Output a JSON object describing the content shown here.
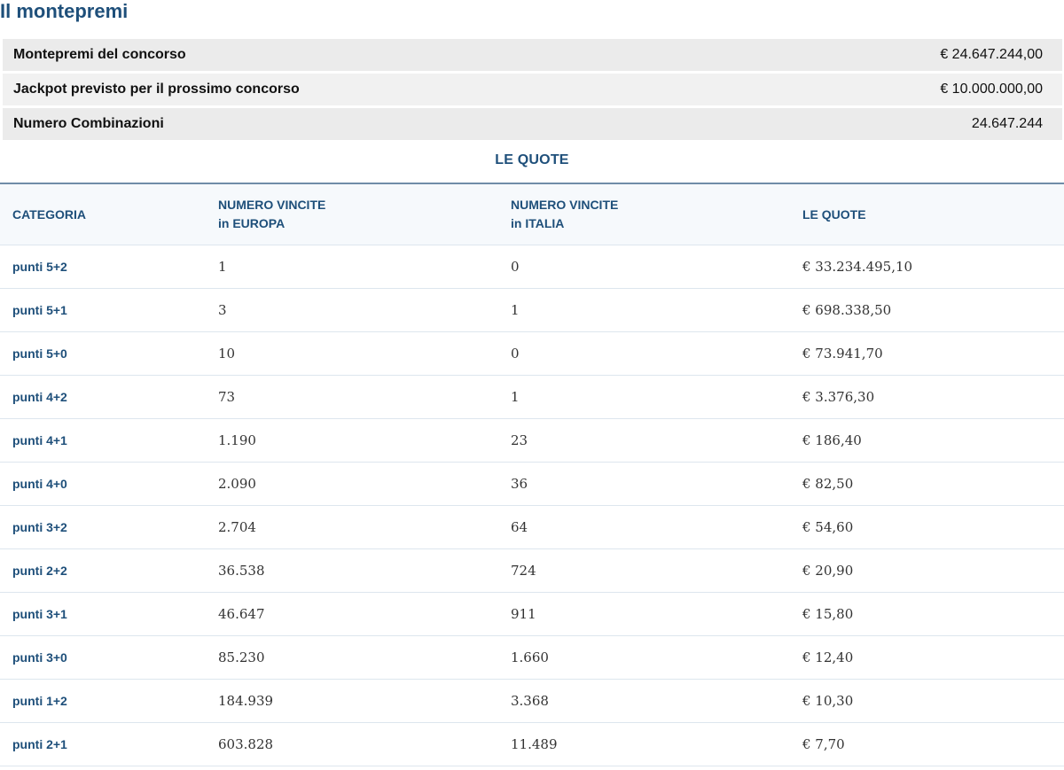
{
  "title": "Il montepremi",
  "summary": [
    {
      "label": "Montepremi del concorso",
      "value": "€ 24.647.244,00"
    },
    {
      "label": "Jackpot previsto per il prossimo concorso",
      "value": "€ 10.000.000,00"
    },
    {
      "label": "Numero Combinazioni",
      "value": "24.647.244"
    }
  ],
  "quote": {
    "title": "LE QUOTE",
    "headers": {
      "categoria": "CATEGORIA",
      "europa_1": "NUMERO VINCITE",
      "europa_2": "in EUROPA",
      "italia_1": "NUMERO VINCITE",
      "italia_2": "in ITALIA",
      "quote": "LE QUOTE"
    },
    "rows": [
      {
        "categoria": "punti 5+2",
        "europa": "1",
        "italia": "0",
        "quota": "€ 33.234.495,10"
      },
      {
        "categoria": "punti 5+1",
        "europa": "3",
        "italia": "1",
        "quota": "€ 698.338,50"
      },
      {
        "categoria": "punti 5+0",
        "europa": "10",
        "italia": "0",
        "quota": "€ 73.941,70"
      },
      {
        "categoria": "punti 4+2",
        "europa": "73",
        "italia": "1",
        "quota": "€ 3.376,30"
      },
      {
        "categoria": "punti 4+1",
        "europa": "1.190",
        "italia": "23",
        "quota": "€ 186,40"
      },
      {
        "categoria": "punti 4+0",
        "europa": "2.090",
        "italia": "36",
        "quota": "€ 82,50"
      },
      {
        "categoria": "punti 3+2",
        "europa": "2.704",
        "italia": "64",
        "quota": "€ 54,60"
      },
      {
        "categoria": "punti 2+2",
        "europa": "36.538",
        "italia": "724",
        "quota": "€ 20,90"
      },
      {
        "categoria": "punti 3+1",
        "europa": "46.647",
        "italia": "911",
        "quota": "€ 15,80"
      },
      {
        "categoria": "punti 3+0",
        "europa": "85.230",
        "italia": "1.660",
        "quota": "€ 12,40"
      },
      {
        "categoria": "punti 1+2",
        "europa": "184.939",
        "italia": "3.368",
        "quota": "€ 10,30"
      },
      {
        "categoria": "punti 2+1",
        "europa": "603.828",
        "italia": "11.489",
        "quota": "€ 7,70"
      }
    ]
  }
}
